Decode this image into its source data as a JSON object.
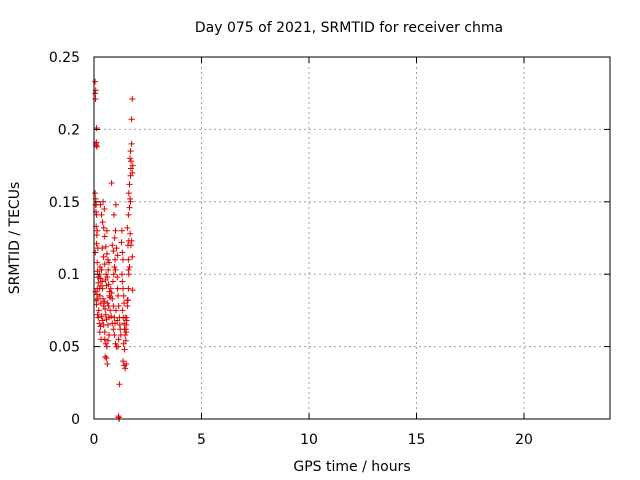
{
  "chart_data": {
    "type": "scatter",
    "title": "Day 075 of 2021, SRMTID for receiver chma",
    "xlabel": "GPS time / hours",
    "ylabel": "SRMTID / TECUs",
    "xlim": [
      0,
      24
    ],
    "ylim": [
      0,
      0.25
    ],
    "xticks": [
      0,
      5,
      10,
      15,
      20
    ],
    "xtick_labels": [
      "0",
      "5",
      "10",
      "15",
      "20"
    ],
    "yticks": [
      0,
      0.05,
      0.1,
      0.15,
      0.2,
      0.25
    ],
    "ytick_labels": [
      "0",
      "0.05",
      "0.1",
      "0.15",
      "0.2",
      "0.25"
    ],
    "grid": true,
    "marker": "+",
    "series": [
      {
        "name": "SRMTID",
        "color": "#e00000",
        "points": [
          [
            0.05,
            0.233
          ],
          [
            0.06,
            0.225
          ],
          [
            0.07,
            0.221
          ],
          [
            0.08,
            0.227
          ],
          [
            0.09,
            0.19
          ],
          [
            0.1,
            0.189
          ],
          [
            0.11,
            0.191
          ],
          [
            0.12,
            0.201
          ],
          [
            0.14,
            0.188
          ],
          [
            0.05,
            0.156
          ],
          [
            0.07,
            0.148
          ],
          [
            0.08,
            0.152
          ],
          [
            0.09,
            0.143
          ],
          [
            0.1,
            0.133
          ],
          [
            0.12,
            0.121
          ],
          [
            0.13,
            0.127
          ],
          [
            0.06,
            0.115
          ],
          [
            0.15,
            0.108
          ],
          [
            0.16,
            0.102
          ],
          [
            0.18,
            0.098
          ],
          [
            0.2,
            0.094
          ],
          [
            0.08,
            0.088
          ],
          [
            0.1,
            0.082
          ],
          [
            0.12,
            0.079
          ],
          [
            0.14,
            0.086
          ],
          [
            0.17,
            0.072
          ],
          [
            0.2,
            0.07
          ],
          [
            0.22,
            0.075
          ],
          [
            0.25,
            0.066
          ],
          [
            0.27,
            0.06
          ],
          [
            0.3,
            0.064
          ],
          [
            0.33,
            0.055
          ],
          [
            0.26,
            0.1
          ],
          [
            0.28,
            0.105
          ],
          [
            0.3,
            0.097
          ],
          [
            0.32,
            0.092
          ],
          [
            0.35,
            0.103
          ],
          [
            0.38,
            0.095
          ],
          [
            0.4,
            0.09
          ],
          [
            0.42,
            0.083
          ],
          [
            0.45,
            0.078
          ],
          [
            0.48,
            0.081
          ],
          [
            0.52,
            0.076
          ],
          [
            0.55,
            0.072
          ],
          [
            0.58,
            0.069
          ],
          [
            0.3,
            0.148
          ],
          [
            0.35,
            0.141
          ],
          [
            0.4,
            0.136
          ],
          [
            0.45,
            0.132
          ],
          [
            0.5,
            0.126
          ],
          [
            0.55,
            0.119
          ],
          [
            0.6,
            0.114
          ],
          [
            0.65,
            0.11
          ],
          [
            0.42,
            0.15
          ],
          [
            0.48,
            0.145
          ],
          [
            0.6,
            0.13
          ],
          [
            0.38,
            0.118
          ],
          [
            0.44,
            0.112
          ],
          [
            0.5,
            0.107
          ],
          [
            0.56,
            0.1
          ],
          [
            0.62,
            0.098
          ],
          [
            0.68,
            0.093
          ],
          [
            0.72,
            0.088
          ],
          [
            0.75,
            0.084
          ],
          [
            0.78,
            0.09
          ],
          [
            0.82,
            0.087
          ],
          [
            0.85,
            0.083
          ],
          [
            0.88,
            0.095
          ],
          [
            0.92,
            0.1
          ],
          [
            0.95,
            0.105
          ],
          [
            0.98,
            0.11
          ],
          [
            1.0,
            0.103
          ],
          [
            0.5,
            0.055
          ],
          [
            0.55,
            0.052
          ],
          [
            0.6,
            0.05
          ],
          [
            0.65,
            0.054
          ],
          [
            0.7,
            0.058
          ],
          [
            0.52,
            0.043
          ],
          [
            0.58,
            0.042
          ],
          [
            0.62,
            0.038
          ],
          [
            0.5,
            0.06
          ],
          [
            0.45,
            0.065
          ],
          [
            0.4,
            0.068
          ],
          [
            0.35,
            0.071
          ],
          [
            0.32,
            0.08
          ],
          [
            0.65,
            0.065
          ],
          [
            0.7,
            0.07
          ],
          [
            0.75,
            0.075
          ],
          [
            0.8,
            0.071
          ],
          [
            0.85,
            0.066
          ],
          [
            0.9,
            0.062
          ],
          [
            0.95,
            0.058
          ],
          [
            1.0,
            0.052
          ],
          [
            1.05,
            0.05
          ],
          [
            0.82,
            0.163
          ],
          [
            0.85,
            0.12
          ],
          [
            0.9,
            0.116
          ],
          [
            0.93,
            0.141
          ],
          [
            0.96,
            0.125
          ],
          [
            1.0,
            0.13
          ],
          [
            1.05,
            0.118
          ],
          [
            1.1,
            0.113
          ],
          [
            1.02,
            0.148
          ],
          [
            1.08,
            0.098
          ],
          [
            1.1,
            0.09
          ],
          [
            1.12,
            0.085
          ],
          [
            1.15,
            0.078
          ],
          [
            1.18,
            0.07
          ],
          [
            1.2,
            0.065
          ],
          [
            1.22,
            0.062
          ],
          [
            1.25,
            0.058
          ],
          [
            1.15,
            0.055
          ],
          [
            1.12,
            0.05
          ],
          [
            1.18,
            0.024
          ],
          [
            1.15,
            0.001
          ],
          [
            1.17,
            0.0
          ],
          [
            1.14,
            0.002
          ],
          [
            1.3,
            0.1
          ],
          [
            1.32,
            0.095
          ],
          [
            1.35,
            0.09
          ],
          [
            1.38,
            0.085
          ],
          [
            1.4,
            0.08
          ],
          [
            1.33,
            0.075
          ],
          [
            1.36,
            0.07
          ],
          [
            1.4,
            0.066
          ],
          [
            1.42,
            0.062
          ],
          [
            1.45,
            0.058
          ],
          [
            1.48,
            0.054
          ],
          [
            1.5,
            0.06
          ],
          [
            1.35,
            0.04
          ],
          [
            1.4,
            0.037
          ],
          [
            1.45,
            0.035
          ],
          [
            1.5,
            0.038
          ],
          [
            1.38,
            0.052
          ],
          [
            1.42,
            0.048
          ],
          [
            1.3,
            0.13
          ],
          [
            1.28,
            0.122
          ],
          [
            1.32,
            0.115
          ],
          [
            1.35,
            0.11
          ],
          [
            1.5,
            0.065
          ],
          [
            1.52,
            0.07
          ],
          [
            1.55,
            0.078
          ],
          [
            1.58,
            0.082
          ],
          [
            1.6,
            0.09
          ],
          [
            1.62,
            0.1
          ],
          [
            1.65,
            0.105
          ],
          [
            1.6,
            0.11
          ],
          [
            1.58,
            0.12
          ],
          [
            1.62,
            0.123
          ],
          [
            1.55,
            0.132
          ],
          [
            1.6,
            0.141
          ],
          [
            1.65,
            0.146
          ],
          [
            1.68,
            0.152
          ],
          [
            1.62,
            0.156
          ],
          [
            1.65,
            0.162
          ],
          [
            1.7,
            0.168
          ],
          [
            1.72,
            0.173
          ],
          [
            1.68,
            0.18
          ],
          [
            1.7,
            0.185
          ],
          [
            1.75,
            0.19
          ],
          [
            1.72,
            0.178
          ],
          [
            1.78,
            0.17
          ],
          [
            1.8,
            0.175
          ],
          [
            1.75,
            0.207
          ],
          [
            1.78,
            0.221
          ],
          [
            1.7,
            0.15
          ],
          [
            1.68,
            0.128
          ],
          [
            1.72,
            0.12
          ],
          [
            1.75,
            0.123
          ],
          [
            1.78,
            0.112
          ],
          [
            1.8,
            0.089
          ],
          [
            1.6,
            0.103
          ],
          [
            1.55,
            0.082
          ],
          [
            1.52,
            0.068
          ],
          [
            1.48,
            0.062
          ],
          [
            1.45,
            0.07
          ],
          [
            0.25,
            0.09
          ],
          [
            0.28,
            0.085
          ],
          [
            0.22,
            0.098
          ],
          [
            0.18,
            0.118
          ],
          [
            0.15,
            0.13
          ],
          [
            0.12,
            0.141
          ],
          [
            0.1,
            0.148
          ],
          [
            0.15,
            0.09
          ],
          [
            0.18,
            0.083
          ],
          [
            0.62,
            0.08
          ],
          [
            0.68,
            0.078
          ],
          [
            0.72,
            0.085
          ],
          [
            0.66,
            0.103
          ],
          [
            0.7,
            0.108
          ],
          [
            0.58,
            0.092
          ],
          [
            0.54,
            0.096
          ],
          [
            0.9,
            0.078
          ],
          [
            0.95,
            0.07
          ],
          [
            0.98,
            0.066
          ],
          [
            1.02,
            0.075
          ],
          [
            1.08,
            0.068
          ]
        ]
      }
    ]
  }
}
